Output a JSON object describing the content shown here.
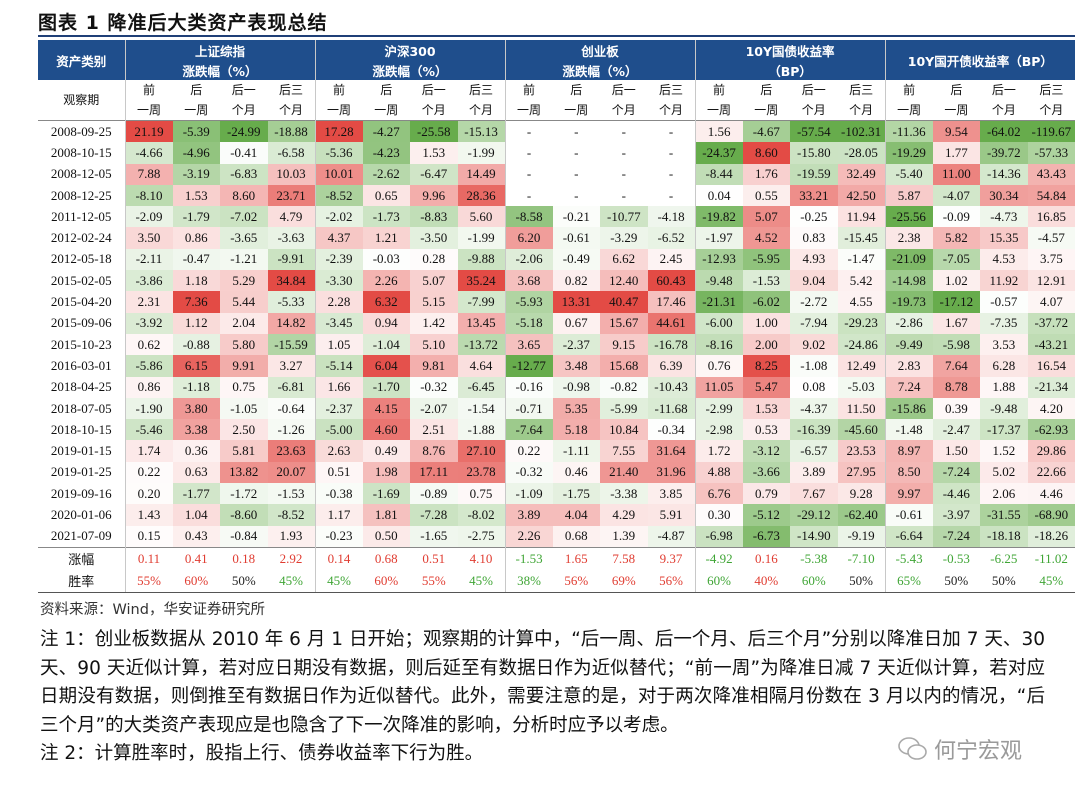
{
  "header": {
    "title": "图表 1 降准后大类资产表现总结"
  },
  "table": {
    "corner": "资产类别",
    "observe_label": "观察期",
    "groups": [
      {
        "name": "上证综指",
        "unit": "涨跌幅（%）"
      },
      {
        "name": "沪深300",
        "unit": "涨跌幅（%）"
      },
      {
        "name": "创业板",
        "unit": "涨跌幅（%）"
      },
      {
        "name": "10Y国债收益率",
        "unit": "（BP）"
      },
      {
        "name": "10Y国开债收益率（BP）"
      }
    ],
    "periods": [
      [
        "前",
        "一周"
      ],
      [
        "后",
        "一周"
      ],
      [
        "后一",
        "个月"
      ],
      [
        "后三",
        "个月"
      ]
    ],
    "rows": [
      {
        "date": "2008-09-25",
        "cells": [
          "21.19",
          "-5.39",
          "-24.99",
          "-18.88",
          "17.28",
          "-4.27",
          "-25.58",
          "-15.13",
          "-",
          "-",
          "-",
          "-",
          "1.56",
          "-4.67",
          "-57.54",
          "-102.31",
          "-11.36",
          "9.54",
          "-64.02",
          "-119.67"
        ]
      },
      {
        "date": "2008-10-15",
        "cells": [
          "-4.66",
          "-4.96",
          "-0.41",
          "-6.58",
          "-5.36",
          "-4.23",
          "1.53",
          "-1.99",
          "-",
          "-",
          "-",
          "-",
          "-24.37",
          "8.60",
          "-15.80",
          "-28.05",
          "-19.29",
          "1.77",
          "-39.72",
          "-57.33"
        ]
      },
      {
        "date": "2008-12-05",
        "cells": [
          "7.88",
          "-3.19",
          "-6.83",
          "10.03",
          "10.01",
          "-2.62",
          "-6.47",
          "14.49",
          "-",
          "-",
          "-",
          "-",
          "-8.44",
          "1.76",
          "-19.59",
          "32.49",
          "-5.40",
          "11.00",
          "-14.36",
          "43.43"
        ]
      },
      {
        "date": "2008-12-25",
        "cells": [
          "-8.10",
          "1.53",
          "8.60",
          "23.71",
          "-8.52",
          "0.65",
          "9.96",
          "28.36",
          "-",
          "-",
          "-",
          "-",
          "0.04",
          "0.55",
          "33.21",
          "42.50",
          "5.87",
          "-4.07",
          "30.34",
          "54.84"
        ]
      },
      {
        "date": "2011-12-05",
        "cells": [
          "-2.09",
          "-1.79",
          "-7.02",
          "4.79",
          "-2.02",
          "-1.73",
          "-8.83",
          "5.60",
          "-8.58",
          "-0.21",
          "-10.77",
          "-4.18",
          "-19.82",
          "5.07",
          "-0.25",
          "11.94",
          "-25.56",
          "-0.09",
          "-4.73",
          "16.85"
        ]
      },
      {
        "date": "2012-02-24",
        "cells": [
          "3.50",
          "0.86",
          "-3.65",
          "-3.63",
          "4.37",
          "1.21",
          "-3.50",
          "-1.99",
          "6.20",
          "-0.61",
          "-3.29",
          "-6.52",
          "-1.97",
          "4.52",
          "0.83",
          "-15.45",
          "2.38",
          "5.82",
          "15.35",
          "-4.57"
        ]
      },
      {
        "date": "2012-05-18",
        "cells": [
          "-2.11",
          "-0.47",
          "-1.21",
          "-9.91",
          "-2.39",
          "-0.03",
          "0.28",
          "-9.88",
          "-2.06",
          "-0.49",
          "6.62",
          "2.45",
          "-12.93",
          "-5.95",
          "4.93",
          "-1.47",
          "-21.09",
          "-7.05",
          "4.53",
          "3.75"
        ]
      },
      {
        "date": "2015-02-05",
        "cells": [
          "-3.86",
          "1.18",
          "5.29",
          "34.84",
          "-3.30",
          "2.26",
          "5.07",
          "35.24",
          "3.68",
          "0.82",
          "12.40",
          "60.43",
          "-9.48",
          "-1.53",
          "9.04",
          "5.42",
          "-14.98",
          "1.02",
          "11.92",
          "12.91"
        ]
      },
      {
        "date": "2015-04-20",
        "cells": [
          "2.31",
          "7.36",
          "5.44",
          "-5.33",
          "2.28",
          "6.32",
          "5.15",
          "-7.99",
          "-5.93",
          "13.31",
          "40.47",
          "17.46",
          "-21.31",
          "-6.02",
          "-2.72",
          "4.55",
          "-19.73",
          "-17.12",
          "-0.57",
          "4.07"
        ]
      },
      {
        "date": "2015-09-06",
        "cells": [
          "-3.92",
          "1.12",
          "2.04",
          "14.82",
          "-3.45",
          "0.94",
          "1.42",
          "13.45",
          "-5.18",
          "0.67",
          "15.67",
          "44.61",
          "-6.00",
          "1.00",
          "-7.94",
          "-29.23",
          "-2.86",
          "1.67",
          "-7.35",
          "-37.72"
        ]
      },
      {
        "date": "2015-10-23",
        "cells": [
          "0.62",
          "-0.88",
          "5.80",
          "-15.59",
          "1.05",
          "-1.04",
          "5.10",
          "-13.72",
          "3.65",
          "-2.37",
          "9.15",
          "-16.78",
          "-8.16",
          "2.00",
          "9.02",
          "-24.86",
          "-9.49",
          "-5.98",
          "3.53",
          "-43.21"
        ]
      },
      {
        "date": "2016-03-01",
        "cells": [
          "-5.86",
          "6.15",
          "9.91",
          "3.27",
          "-5.14",
          "6.04",
          "9.81",
          "4.64",
          "-12.77",
          "3.48",
          "15.68",
          "6.39",
          "0.76",
          "8.25",
          "-1.08",
          "12.49",
          "2.83",
          "7.64",
          "6.28",
          "16.54"
        ]
      },
      {
        "date": "2018-04-25",
        "cells": [
          "0.86",
          "-1.18",
          "0.75",
          "-6.81",
          "1.66",
          "-1.70",
          "-0.32",
          "-6.45",
          "-0.16",
          "-0.98",
          "-0.82",
          "-10.43",
          "11.05",
          "5.47",
          "0.08",
          "-5.03",
          "7.24",
          "8.78",
          "1.88",
          "-21.34"
        ]
      },
      {
        "date": "2018-07-05",
        "cells": [
          "-1.90",
          "3.80",
          "-1.05",
          "-0.64",
          "-2.37",
          "4.15",
          "-2.07",
          "-1.54",
          "-0.71",
          "5.35",
          "-5.99",
          "-11.68",
          "-2.99",
          "1.53",
          "-4.37",
          "11.50",
          "-15.86",
          "0.39",
          "-9.48",
          "4.20"
        ]
      },
      {
        "date": "2018-10-15",
        "cells": [
          "-5.46",
          "3.38",
          "2.50",
          "-1.26",
          "-5.00",
          "4.60",
          "2.51",
          "-1.88",
          "-7.64",
          "5.18",
          "10.84",
          "-0.34",
          "-2.98",
          "0.53",
          "-16.39",
          "-45.60",
          "-1.48",
          "-2.47",
          "-17.37",
          "-62.93"
        ]
      },
      {
        "date": "2019-01-15",
        "cells": [
          "1.74",
          "0.36",
          "5.81",
          "23.63",
          "2.63",
          "0.49",
          "8.76",
          "27.10",
          "0.22",
          "-1.11",
          "7.55",
          "31.64",
          "1.72",
          "-3.12",
          "-6.57",
          "23.53",
          "8.97",
          "1.50",
          "1.52",
          "29.86"
        ]
      },
      {
        "date": "2019-01-25",
        "cells": [
          "0.22",
          "0.63",
          "13.82",
          "20.07",
          "0.51",
          "1.98",
          "17.11",
          "23.78",
          "-0.32",
          "0.46",
          "21.40",
          "31.96",
          "4.88",
          "-3.66",
          "3.89",
          "27.95",
          "8.50",
          "-7.24",
          "5.02",
          "22.66"
        ]
      },
      {
        "date": "2019-09-16",
        "cells": [
          "0.20",
          "-1.77",
          "-1.72",
          "-1.53",
          "-0.38",
          "-1.69",
          "-0.89",
          "0.75",
          "-1.09",
          "-1.75",
          "-3.38",
          "3.85",
          "6.76",
          "0.79",
          "7.67",
          "9.28",
          "9.97",
          "-4.46",
          "2.06",
          "4.46"
        ]
      },
      {
        "date": "2020-01-06",
        "cells": [
          "1.43",
          "1.04",
          "-8.60",
          "-8.52",
          "1.17",
          "1.81",
          "-7.28",
          "-8.02",
          "3.89",
          "4.04",
          "4.29",
          "5.91",
          "0.30",
          "-5.12",
          "-29.12",
          "-62.40",
          "-0.61",
          "-3.97",
          "-31.55",
          "-68.90"
        ]
      },
      {
        "date": "2021-07-09",
        "cells": [
          "0.15",
          "0.43",
          "-0.84",
          "1.93",
          "-0.23",
          "0.50",
          "-1.65",
          "-2.75",
          "2.26",
          "0.68",
          "1.39",
          "-4.87",
          "-6.98",
          "-6.73",
          "-14.90",
          "-9.19",
          "-6.64",
          "-7.24",
          "-18.18",
          "-18.26"
        ]
      }
    ],
    "summary": [
      {
        "label": "涨幅",
        "cells": [
          "0.11",
          "0.41",
          "0.18",
          "2.92",
          "0.14",
          "0.68",
          "0.51",
          "4.10",
          "-1.53",
          "1.65",
          "7.58",
          "9.37",
          "-4.92",
          "0.16",
          "-5.38",
          "-7.10",
          "-5.43",
          "-0.53",
          "-6.25",
          "-11.02"
        ]
      },
      {
        "label": "胜率",
        "cells": [
          "55%",
          "60%",
          "50%",
          "45%",
          "45%",
          "60%",
          "55%",
          "45%",
          "38%",
          "56%",
          "69%",
          "56%",
          "60%",
          "40%",
          "60%",
          "50%",
          "65%",
          "50%",
          "50%",
          "45%"
        ],
        "colors": [
          "#e03c31",
          "#e03c31",
          "#222222",
          "#3fa535",
          "#3fa535",
          "#e03c31",
          "#e03c31",
          "#3fa535",
          "#3fa535",
          "#e03c31",
          "#e03c31",
          "#e03c31",
          "#3fa535",
          "#e03c31",
          "#3fa535",
          "#222222",
          "#3fa535",
          "#222222",
          "#222222",
          "#3fa535"
        ]
      }
    ]
  },
  "footer": {
    "source": "资料来源：Wind，华安证券研究所",
    "notes": [
      "注 1：创业板数据从 2010 年 6 月 1 日开始；观察期的计算中，“后一周、后一个月、后三个月”分别以降准日加 7 天、30 天、90 天近似计算，若对应日期没有数据，则后延至有数据日作为近似替代；“前一周”为降准日减 7 天近似计算，若对应日期没有数据，则倒推至有数据日作为近似替代。此外，需要注意的是，对于两次降准相隔月份数在 3 月以内的情况，“后三个月”的大类资产表现应是也隐含了下一次降准的影响，分析时应予以考虑。",
      "注 2：计算胜率时，股指上行、债券收益率下行为胜。"
    ],
    "watermark": "何宁宏观"
  }
}
